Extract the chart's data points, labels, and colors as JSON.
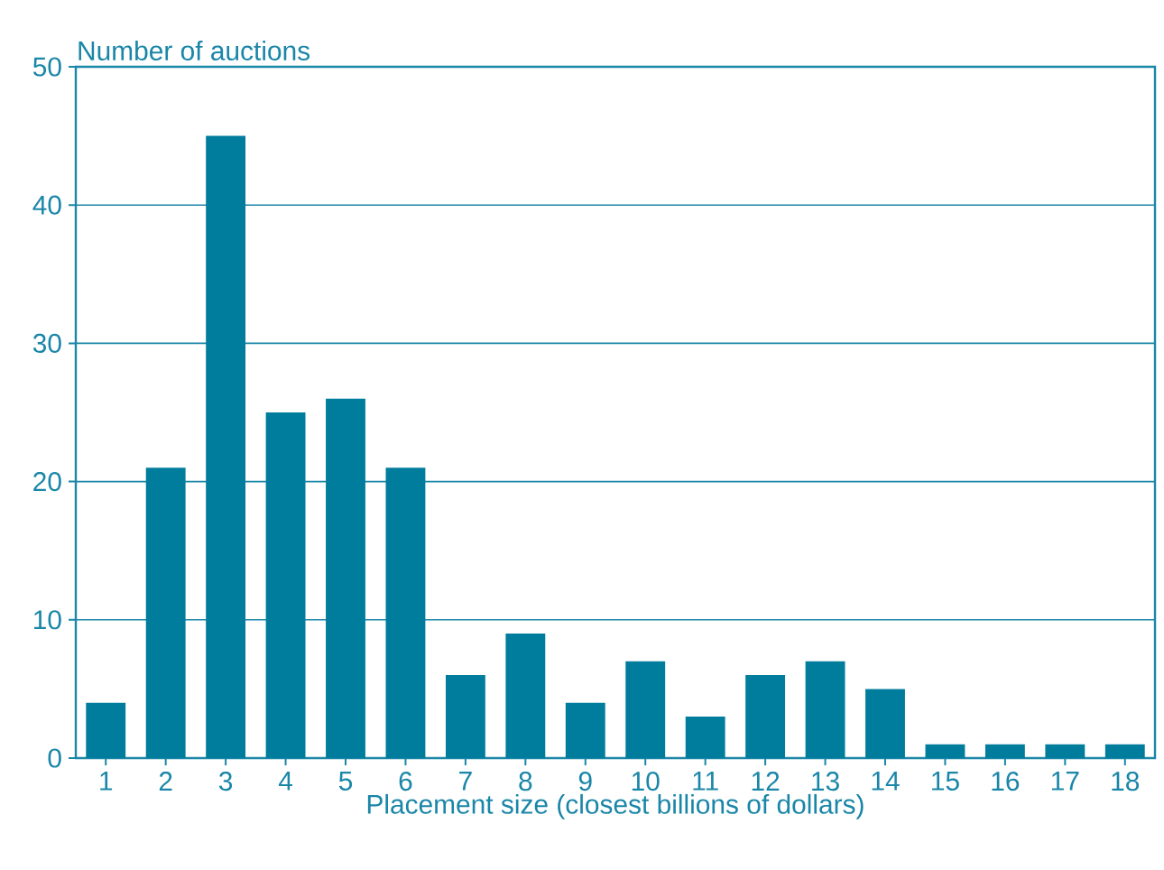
{
  "chart_data": {
    "type": "bar",
    "xlabel": "Placement size (closest billions of dollars)",
    "ylabel": "Number of auctions",
    "categories": [
      "1",
      "2",
      "3",
      "4",
      "5",
      "6",
      "7",
      "8",
      "9",
      "10",
      "11",
      "12",
      "13",
      "14",
      "15",
      "16",
      "17",
      "18"
    ],
    "values": [
      4,
      21,
      45,
      25,
      26,
      21,
      6,
      9,
      4,
      7,
      3,
      6,
      7,
      5,
      1,
      1,
      1,
      1
    ],
    "color": "#007c9c",
    "ylim": [
      0,
      50
    ],
    "yticks": [
      0,
      10,
      20,
      30,
      40,
      50
    ],
    "grid": "y"
  }
}
